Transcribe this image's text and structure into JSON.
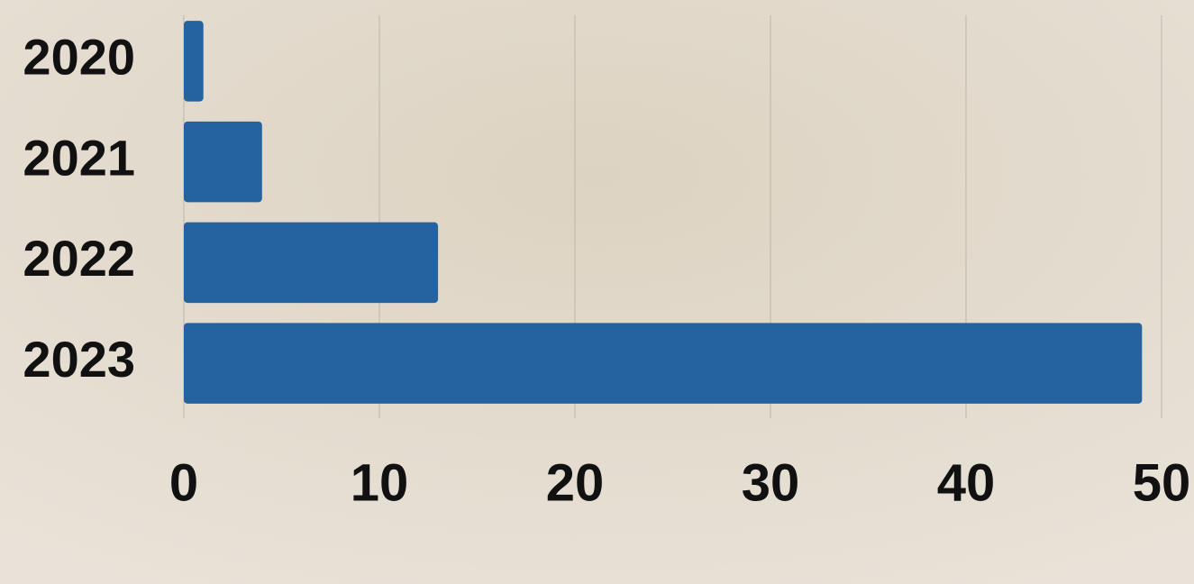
{
  "chart_data": {
    "type": "bar",
    "orientation": "horizontal",
    "categories": [
      "2020",
      "2021",
      "2022",
      "2023"
    ],
    "values": [
      1,
      4,
      13,
      49
    ],
    "color": "#2563a0",
    "xlim": [
      0,
      50
    ],
    "xticks": [
      0,
      10,
      20,
      30,
      40,
      50
    ],
    "grid": true
  }
}
